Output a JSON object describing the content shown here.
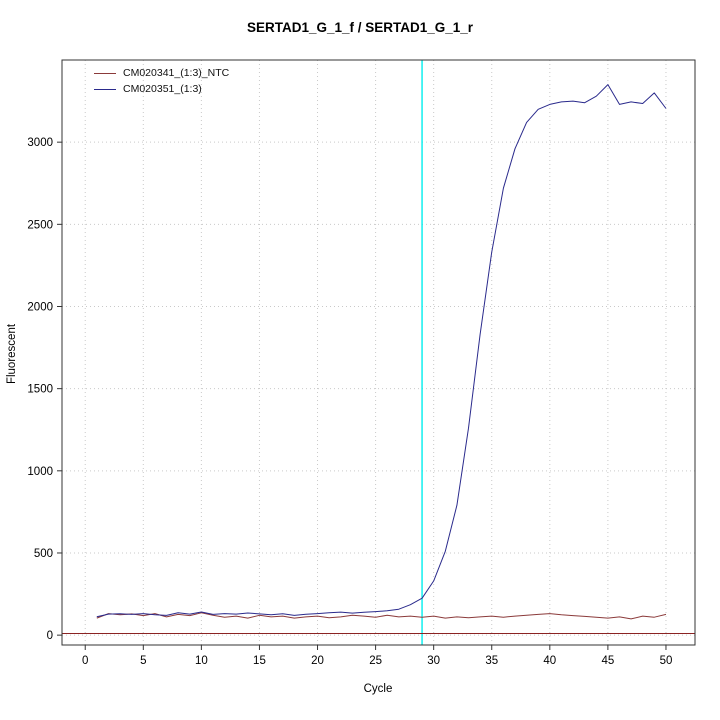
{
  "chart_data": {
    "type": "line",
    "title": "SERTAD1_G_1_f / SERTAD1_G_1_r",
    "xlabel": "Cycle",
    "ylabel": "Fluorescent",
    "xlim": [
      -2,
      52.5
    ],
    "ylim": [
      -60,
      3500
    ],
    "x_ticks": [
      0,
      5,
      10,
      15,
      20,
      25,
      30,
      35,
      40,
      45,
      50
    ],
    "y_ticks": [
      0,
      500,
      1000,
      1500,
      2000,
      2500,
      3000
    ],
    "grid": "dotted",
    "legend_position": "top-left",
    "cycles": [
      1,
      2,
      3,
      4,
      5,
      6,
      7,
      8,
      9,
      10,
      11,
      12,
      13,
      14,
      15,
      16,
      17,
      18,
      19,
      20,
      21,
      22,
      23,
      24,
      25,
      26,
      27,
      28,
      29,
      30,
      31,
      32,
      33,
      34,
      35,
      36,
      37,
      38,
      39,
      40,
      41,
      42,
      43,
      44,
      45,
      46,
      47,
      48,
      49,
      50
    ],
    "series": [
      {
        "name": "CM020341_(1:3)_NTC",
        "color": "#8B3A3A",
        "values": [
          104,
          131,
          124,
          129,
          119,
          131,
          111,
          126,
          119,
          136,
          121,
          109,
          116,
          104,
          121,
          111,
          116,
          104,
          111,
          116,
          106,
          111,
          121,
          116,
          109,
          121,
          111,
          116,
          109,
          116,
          104,
          111,
          106,
          111,
          116,
          109,
          116,
          121,
          126,
          131,
          124,
          119,
          114,
          109,
          104,
          111,
          99,
          116,
          109,
          126
        ]
      },
      {
        "name": "CM020351_(1:3)",
        "color": "#2A2A8C",
        "values": [
          112,
          128,
          130,
          126,
          131,
          124,
          120,
          136,
          128,
          141,
          126,
          131,
          128,
          135,
          129,
          124,
          130,
          120,
          127,
          131,
          136,
          140,
          134,
          139,
          143,
          148,
          158,
          185,
          225,
          330,
          510,
          790,
          1260,
          1830,
          2330,
          2720,
          2960,
          3120,
          3200,
          3230,
          3245,
          3250,
          3240,
          3280,
          3350,
          3230,
          3245,
          3235,
          3300,
          3205
        ]
      }
    ],
    "threshold_line": {
      "y": 10,
      "color": "#8B2323"
    },
    "ct_vline": {
      "x": 29,
      "color": "#00EEEE"
    },
    "grid_color": "#c9c9c9",
    "axis_color": "#333333"
  }
}
